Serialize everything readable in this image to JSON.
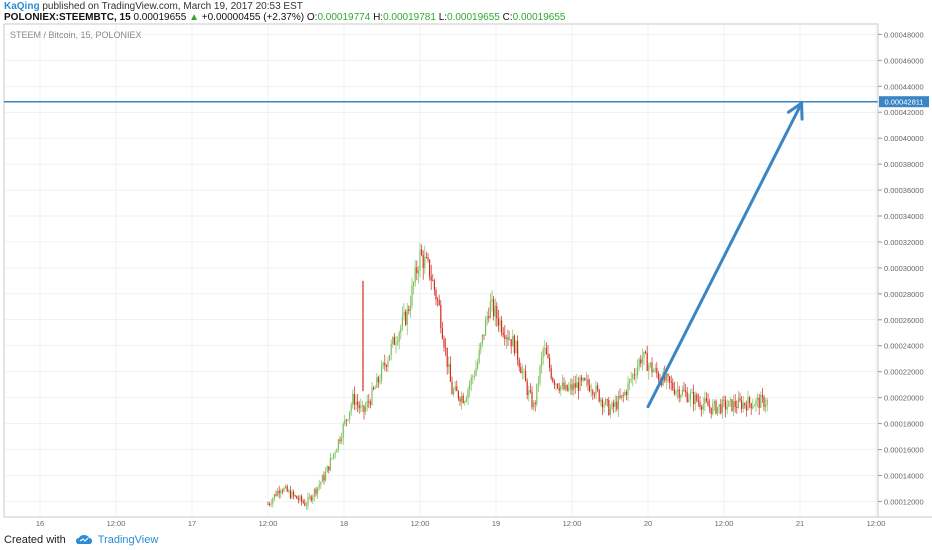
{
  "header": {
    "author": "KaQing",
    "published": "published on TradingView.com, March 19, 2017 20:53 EST",
    "symbol": "POLONIEX:STEEMBTC, 15",
    "last": "0.00019655",
    "change_arrow": "▲",
    "change": "+0.00000455 (+2.37%)",
    "o_label": "O:",
    "o": "0.00019774",
    "h_label": "H:",
    "h": "0.00019781",
    "l_label": "L:",
    "l": "0.00019655",
    "c_label": "C:",
    "c": "0.00019655"
  },
  "chart_title": "STEEM / Bitcoin, 15, POLONIEX",
  "price_tag": "0.00042811",
  "footer": {
    "created": "Created with",
    "brand": "TradingView"
  },
  "colors": {
    "up": "#7cbf5a",
    "down": "#d62b20",
    "line": "#3a85c4",
    "text_blue": "#2a8dd4",
    "grid": "#e4e4e4"
  },
  "chart_data": {
    "type": "candlestick",
    "title": "STEEM / Bitcoin, 15, POLONIEX",
    "ylim": [
      0.000108,
      0.000488
    ],
    "y_ticks": [
      "0.00048000",
      "0.00046000",
      "0.00044000",
      "0.00042000",
      "0.00040000",
      "0.00038000",
      "0.00036000",
      "0.00034000",
      "0.00032000",
      "0.00030000",
      "0.00028000",
      "0.00026000",
      "0.00024000",
      "0.00022000",
      "0.00020000",
      "0.00018000",
      "0.00016000",
      "0.00014000",
      "0.00012000"
    ],
    "x_ticks": [
      "16",
      "12:00",
      "17",
      "12:00",
      "18",
      "12:00",
      "19",
      "12:00",
      "20",
      "12:00",
      "21",
      "12:00"
    ],
    "price_line": 0.00042811,
    "trend_arrow": {
      "from": [
        "2017-03-20 00:00",
        0.000193
      ],
      "to": [
        "2017-03-21 00:15",
        0.000427
      ]
    },
    "close_path": [
      [
        "2017-03-17 12:00",
        0.000118
      ],
      [
        "2017-03-17 14:00",
        0.000131
      ],
      [
        "2017-03-17 16:00",
        0.000124
      ],
      [
        "2017-03-17 18:00",
        0.000118
      ],
      [
        "2017-03-17 21:00",
        0.00014
      ],
      [
        "2017-03-17 23:00",
        0.000165
      ],
      [
        "2017-03-18 01:30",
        0.0002
      ],
      [
        "2017-03-18 03:00",
        0.000188
      ],
      [
        "2017-03-18 05:00",
        0.000208
      ],
      [
        "2017-03-18 08:00",
        0.000245
      ],
      [
        "2017-03-18 10:00",
        0.000265
      ],
      [
        "2017-03-18 12:00",
        0.00031
      ],
      [
        "2017-03-18 13:30",
        0.000298
      ],
      [
        "2017-03-18 15:00",
        0.00027
      ],
      [
        "2017-03-18 17:00",
        0.000205
      ],
      [
        "2017-03-18 19:00",
        0.0002
      ],
      [
        "2017-03-18 21:00",
        0.000225
      ],
      [
        "2017-03-18 23:00",
        0.000272
      ],
      [
        "2017-03-19 01:00",
        0.000255
      ],
      [
        "2017-03-19 03:00",
        0.00024
      ],
      [
        "2017-03-19 05:00",
        0.000205
      ],
      [
        "2017-03-19 06:00",
        0.000192
      ],
      [
        "2017-03-19 07:30",
        0.000238
      ],
      [
        "2017-03-19 09:00",
        0.000215
      ],
      [
        "2017-03-19 11:00",
        0.000205
      ],
      [
        "2017-03-19 13:00",
        0.00021
      ],
      [
        "2017-03-19 15:00",
        0.00021
      ],
      [
        "2017-03-19 18:00",
        0.00019
      ],
      [
        "2017-03-19 20:00",
        0.0002
      ],
      [
        "2017-03-19 23:00",
        0.000232
      ],
      [
        "2017-03-20 01:00",
        0.00022
      ],
      [
        "2017-03-20 04:00",
        0.000208
      ],
      [
        "2017-03-20 07:00",
        0.0002
      ],
      [
        "2017-03-20 10:00",
        0.000192
      ],
      [
        "2017-03-20 13:00",
        0.000194
      ],
      [
        "2017-03-20 16:00",
        0.000196
      ],
      [
        "2017-03-20 19:00",
        0.000197
      ]
    ],
    "spike": {
      "time": "2017-03-18 03:00",
      "high": 0.00029
    }
  }
}
